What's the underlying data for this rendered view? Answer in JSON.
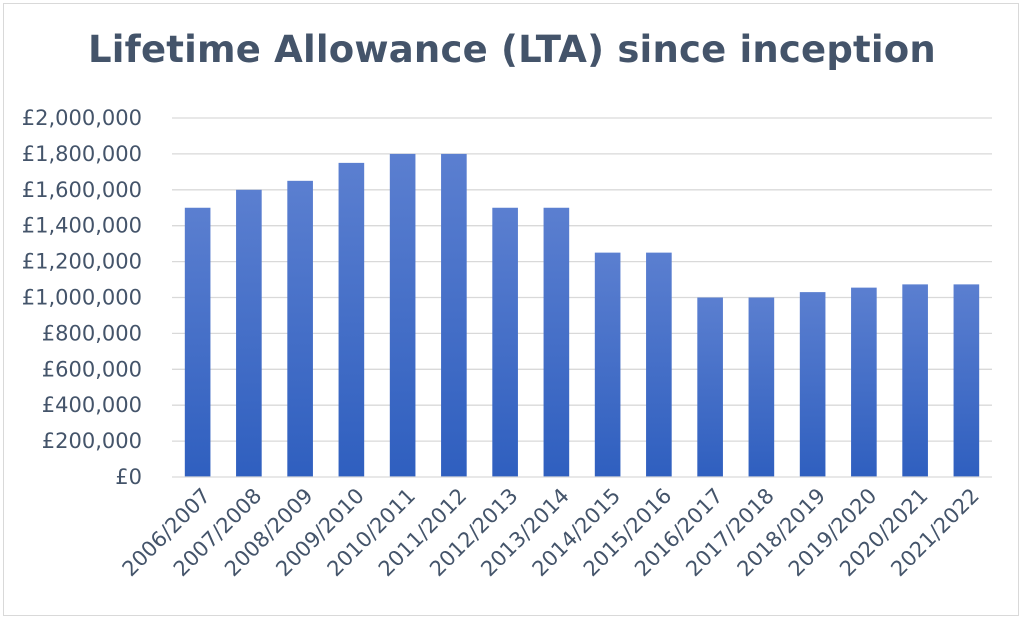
{
  "chart_data": {
    "type": "bar",
    "title": "Lifetime Allowance (LTA) since inception",
    "xlabel": "",
    "ylabel": "",
    "categories": [
      "2006/2007",
      "2007/2008",
      "2008/2009",
      "2009/2010",
      "2010/2011",
      "2011/2012",
      "2012/2013",
      "2013/2014",
      "2014/2015",
      "2015/2016",
      "2016/2017",
      "2017/2018",
      "2018/2019",
      "2019/2020",
      "2020/2021",
      "2021/2022"
    ],
    "values": [
      1500000,
      1600000,
      1650000,
      1750000,
      1800000,
      1800000,
      1500000,
      1500000,
      1250000,
      1250000,
      1000000,
      1000000,
      1030000,
      1055000,
      1073100,
      1073100
    ],
    "ylim": [
      0,
      2000000
    ],
    "yticks": [
      0,
      200000,
      400000,
      600000,
      800000,
      1000000,
      1200000,
      1400000,
      1600000,
      1800000,
      2000000
    ],
    "ytick_labels": [
      "£0",
      "£200,000",
      "£400,000",
      "£600,000",
      "£800,000",
      "£1,000,000",
      "£1,200,000",
      "£1,400,000",
      "£1,600,000",
      "£1,800,000",
      "£2,000,000"
    ],
    "grid": true,
    "legend": "none",
    "colors": {
      "bar_top": "#5b7fd0",
      "bar_bottom": "#2f5fbf",
      "text": "#44546a",
      "grid": "#d9d9d9"
    }
  }
}
